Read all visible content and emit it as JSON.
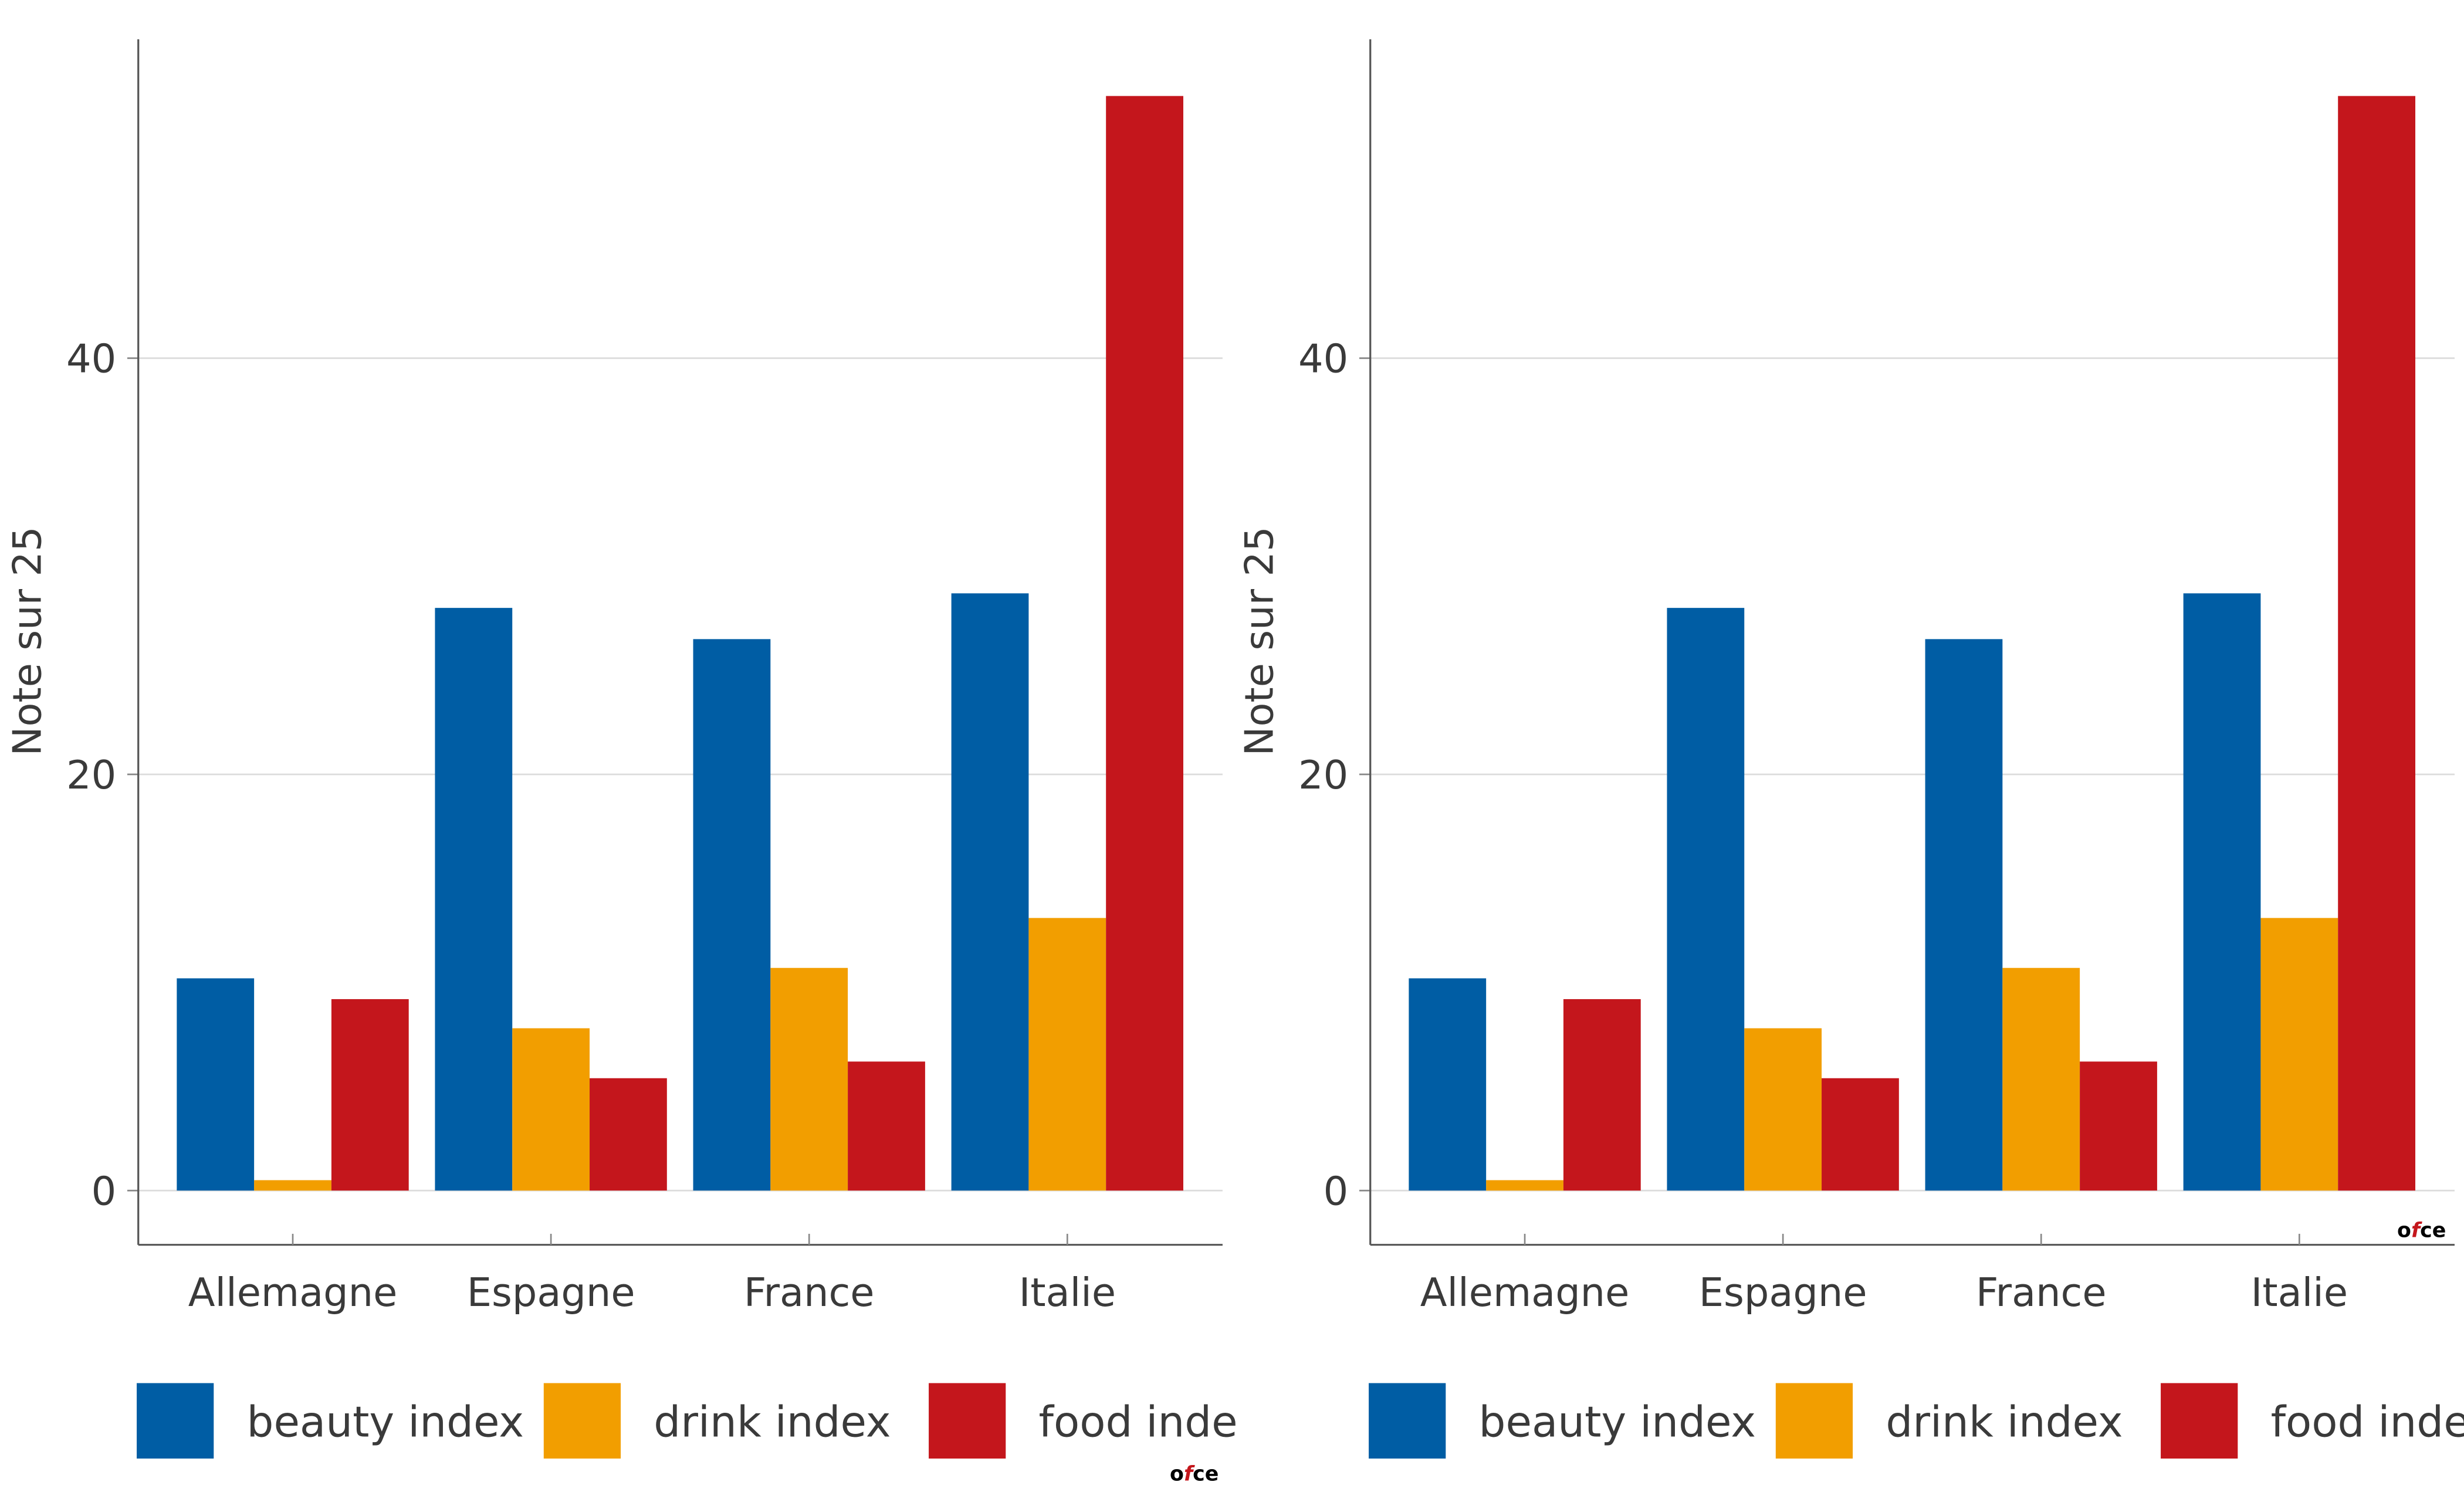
{
  "chart_data": [
    {
      "type": "bar",
      "categories": [
        "Allemagne",
        "Espagne",
        "France",
        "Italie"
      ],
      "series": [
        {
          "name": "beauty index",
          "color": "#005DA4",
          "values": [
            10.2,
            28.0,
            26.5,
            28.7
          ]
        },
        {
          "name": "drink index",
          "color": "#F29E00",
          "values": [
            0.5,
            7.8,
            10.7,
            13.1
          ]
        },
        {
          "name": "food index",
          "color": "#C4161C",
          "values": [
            9.2,
            5.4,
            6.2,
            52.6
          ]
        }
      ],
      "ylabel": "Note sur 25",
      "yticks": [
        0,
        20,
        40
      ],
      "ylim": [
        -2.6,
        55.3
      ],
      "legend": {
        "position": "bottom",
        "labels": [
          "beauty index",
          "drink index",
          "food inde"
        ]
      },
      "grid": "horizontal",
      "watermark": "ofce"
    },
    {
      "type": "bar",
      "categories": [
        "Allemagne",
        "Espagne",
        "France",
        "Italie"
      ],
      "series": [
        {
          "name": "beauty index",
          "color": "#005DA4",
          "values": [
            10.2,
            28.0,
            26.5,
            28.7
          ]
        },
        {
          "name": "drink index",
          "color": "#F29E00",
          "values": [
            0.5,
            7.8,
            10.7,
            13.1
          ]
        },
        {
          "name": "food index",
          "color": "#C4161C",
          "values": [
            9.2,
            5.4,
            6.2,
            52.6
          ]
        }
      ],
      "ylabel": "Note sur 25",
      "yticks": [
        0,
        20,
        40
      ],
      "ylim": [
        -2.6,
        55.3
      ],
      "legend": {
        "position": "bottom",
        "labels": [
          "beauty index",
          "drink index",
          "food inde"
        ]
      },
      "grid": "horizontal",
      "watermark": "ofce"
    }
  ]
}
